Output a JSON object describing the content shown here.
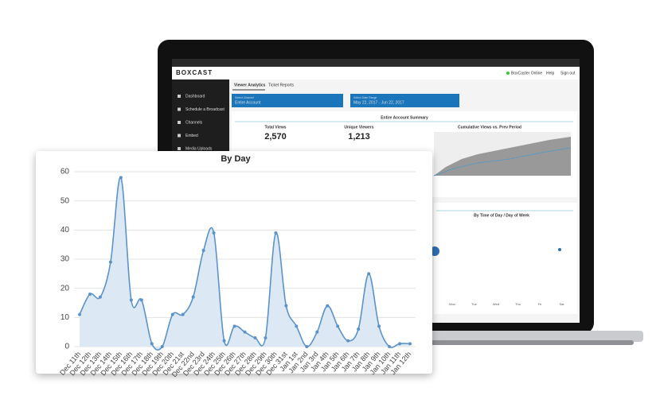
{
  "dashboard": {
    "logo": "BOXCAST",
    "status": "BoxCaster Online",
    "help": "Help",
    "signout": "Sign out",
    "sidebar": [
      "Dashboard",
      "Schedule a Broadcast",
      "Channels",
      "Embed",
      "Media Uploads"
    ],
    "tabs": [
      "Viewer Analytics",
      "Ticket Reports"
    ],
    "channel_label": "Select Channel",
    "channel": "Entire Account",
    "date_label": "Select Date Range",
    "date": "May 22, 2017 - Jun 22, 2017",
    "summary_title": "Entire Account Summary",
    "total_views_label": "Total Views",
    "total_views": "2,570",
    "unique_label": "Unique Viewers",
    "unique": "1,213",
    "cumulative_title": "Cumulative Views vs. Prev Period",
    "time_title": "By Time of Day / Day of Week",
    "days": [
      "Mon",
      "Tue",
      "Wed",
      "Thu",
      "Fri",
      "Sat"
    ]
  },
  "chart_data": {
    "type": "line",
    "title": "By Day",
    "categories": [
      "Dec 11th",
      "Dec 12th",
      "Dec 13th",
      "Dec 14th",
      "Dec 15th",
      "Dec 16th",
      "Dec 17th",
      "Dec 18th",
      "Dec 19th",
      "Dec 20th",
      "Dec 21st",
      "Dec 22nd",
      "Dec 23rd",
      "Dec 24th",
      "Dec 25th",
      "Dec 26th",
      "Dec 27th",
      "Dec 28th",
      "Dec 29th",
      "Dec 30th",
      "Dec 31st",
      "Jan 1st",
      "Jan 2nd",
      "Jan 3rd",
      "Jan 4th",
      "Jan 5th",
      "Jan 6th",
      "Jan 7th",
      "Jan 8th",
      "Jan 9th",
      "Jan 10th",
      "Jan 11th",
      "Jan 12th"
    ],
    "values": [
      11,
      18,
      17,
      29,
      58,
      16,
      16,
      1,
      0,
      11,
      11,
      17,
      33,
      39,
      2,
      7,
      5,
      3,
      3,
      39,
      14,
      7,
      0,
      5,
      14,
      7,
      2,
      6,
      25,
      7,
      0,
      1,
      1
    ],
    "color": "#5b93c9",
    "fill": "#dde8f5",
    "ylim": [
      0,
      60
    ],
    "yticks": [
      0,
      10,
      20,
      30,
      40,
      50,
      60
    ],
    "grid": true
  }
}
